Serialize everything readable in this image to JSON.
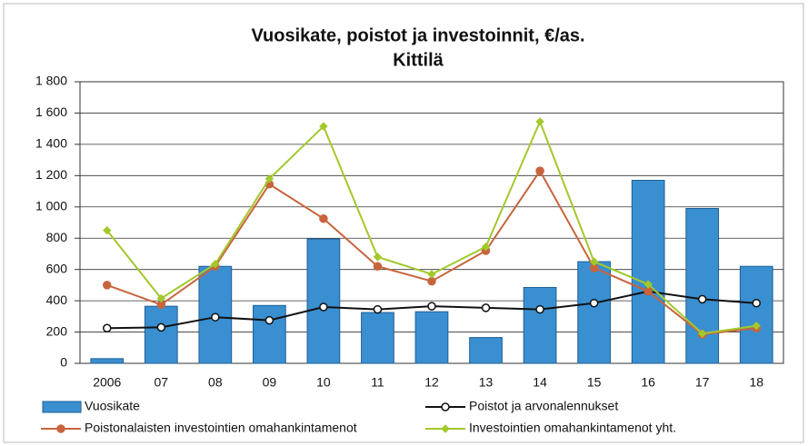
{
  "chart_data": {
    "type": "bar",
    "title": "Vuosikate, poistot ja investoinnit, €/as.",
    "subtitle": "Kittilä",
    "categories": [
      "2006",
      "07",
      "08",
      "09",
      "10",
      "11",
      "12",
      "13",
      "14",
      "15",
      "16",
      "17",
      "18"
    ],
    "series": [
      {
        "name": "Vuosikate",
        "type": "bar",
        "color": "#3a8fd1",
        "values": [
          30,
          365,
          620,
          370,
          795,
          325,
          330,
          165,
          485,
          650,
          1170,
          990,
          620
        ]
      },
      {
        "name": "Poistot ja arvonalennukset",
        "type": "line",
        "marker": "circle",
        "color": "#111111",
        "values": [
          225,
          230,
          295,
          275,
          360,
          345,
          365,
          355,
          345,
          385,
          460,
          410,
          385
        ]
      },
      {
        "name": "Poistonalaisten investointien omahankintamenot",
        "type": "line",
        "marker": "circle",
        "color": "#c8643c",
        "values": [
          500,
          375,
          620,
          1145,
          925,
          620,
          525,
          720,
          1230,
          610,
          460,
          185,
          225
        ]
      },
      {
        "name": "Investointien omahankintamenot yht.",
        "type": "line",
        "marker": "diamond",
        "color": "#a3c82c",
        "values": [
          850,
          415,
          635,
          1180,
          1515,
          680,
          570,
          745,
          1545,
          650,
          505,
          190,
          240
        ]
      }
    ],
    "ylim": [
      0,
      1800
    ],
    "yticks": [
      0,
      200,
      400,
      600,
      800,
      {
        "value": 1000,
        "label": "1 000"
      },
      {
        "value": 1200,
        "label": "1 200"
      },
      {
        "value": 1400,
        "label": "1 400"
      },
      {
        "value": 1600,
        "label": "1 600"
      },
      {
        "value": 1800,
        "label": "1 800"
      }
    ],
    "grid": true
  }
}
